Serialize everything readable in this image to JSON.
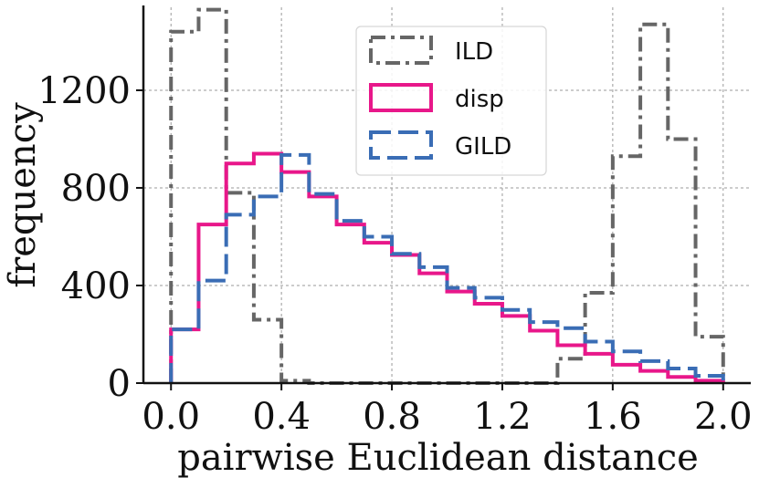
{
  "chart_data": {
    "type": "step-histogram",
    "xlabel": "pairwise Euclidean distance",
    "ylabel": "frequency",
    "xlim": [
      -0.1,
      2.1
    ],
    "ylim": [
      0,
      1540
    ],
    "x_ticks": [
      0.0,
      0.4,
      0.8,
      1.2,
      1.6,
      2.0
    ],
    "x_tick_labels": [
      "0.0",
      "0.4",
      "0.8",
      "1.2",
      "1.6",
      "2.0"
    ],
    "y_ticks": [
      0,
      400,
      800,
      1200
    ],
    "y_tick_labels": [
      "0",
      "400",
      "800",
      "1200"
    ],
    "grid": true,
    "legend_position": "top-center",
    "bin_edges": [
      0.0,
      0.1,
      0.2,
      0.3,
      0.4,
      0.5,
      0.6,
      0.7,
      0.8,
      0.9,
      1.0,
      1.1,
      1.2,
      1.3,
      1.4,
      1.5,
      1.6,
      1.7,
      1.8,
      1.9,
      2.0
    ],
    "series": [
      {
        "name": "ILD",
        "color": "#666666",
        "style": "dash-dot",
        "values": [
          1440,
          1530,
          780,
          260,
          10,
          0,
          0,
          0,
          0,
          0,
          0,
          0,
          0,
          0,
          100,
          370,
          930,
          1470,
          1000,
          190
        ]
      },
      {
        "name": "disp",
        "color": "#e8178a",
        "style": "solid",
        "values": [
          220,
          650,
          900,
          940,
          865,
          765,
          650,
          575,
          525,
          450,
          375,
          325,
          275,
          215,
          155,
          120,
          75,
          50,
          25,
          10
        ]
      },
      {
        "name": "GILD",
        "color": "#3a6db5",
        "style": "dashed",
        "values": [
          220,
          420,
          690,
          765,
          935,
          775,
          665,
          600,
          530,
          475,
          390,
          350,
          300,
          250,
          225,
          170,
          130,
          90,
          60,
          30
        ]
      }
    ]
  }
}
